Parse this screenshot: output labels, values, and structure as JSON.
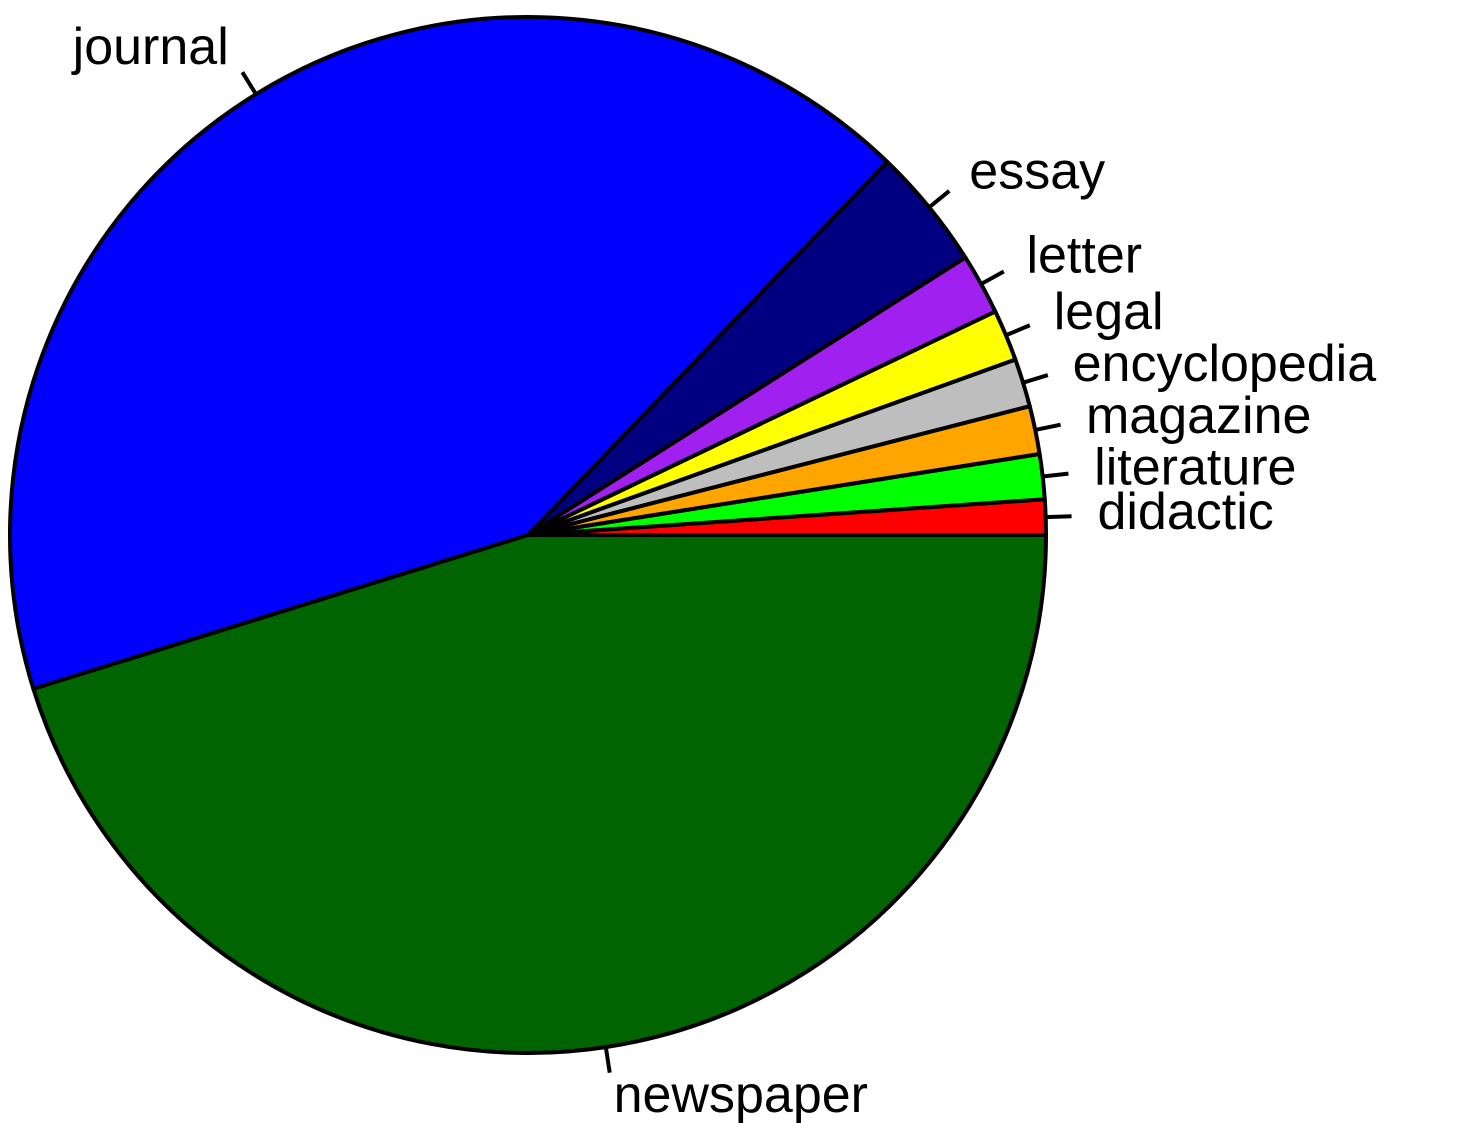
{
  "chart_data": {
    "type": "pie",
    "categories": [
      "didactic",
      "literature",
      "magazine",
      "encyclopedia",
      "legal",
      "letter",
      "essay",
      "journal",
      "newspaper"
    ],
    "values": [
      1.1,
      1.4,
      1.5,
      1.5,
      1.6,
      1.9,
      3.8,
      42,
      45.2
    ],
    "colors": [
      "#ff0000",
      "#00ff00",
      "#ffa500",
      "#bebebe",
      "#ffff00",
      "#a020f0",
      "#000080",
      "#0000ff",
      "#006400"
    ]
  }
}
